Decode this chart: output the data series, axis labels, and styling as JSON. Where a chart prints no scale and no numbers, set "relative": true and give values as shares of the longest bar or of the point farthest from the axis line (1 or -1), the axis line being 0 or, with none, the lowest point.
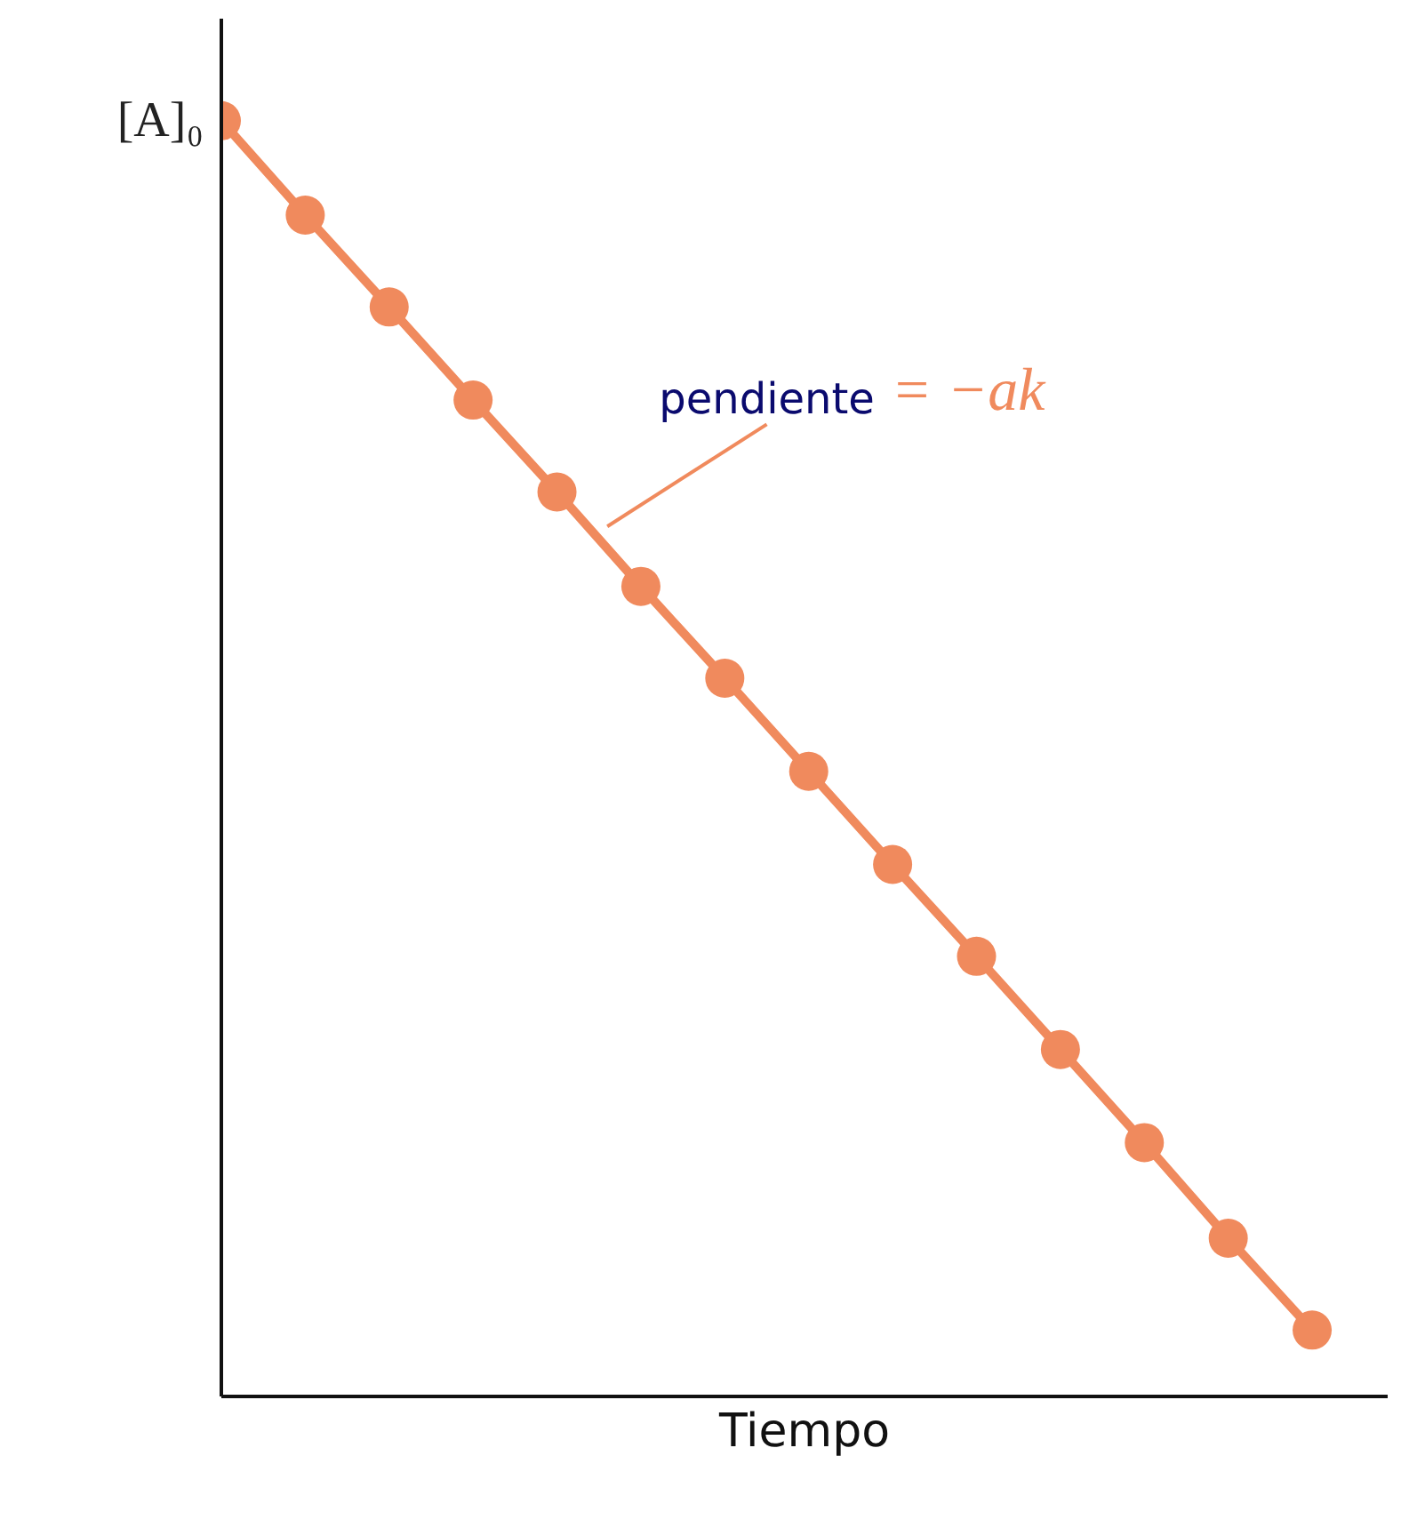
{
  "chart_data": {
    "type": "line",
    "relative": true,
    "xlabel": "Tiempo",
    "categories": [
      null,
      null,
      null,
      null,
      null,
      null,
      null,
      null,
      null,
      null,
      null,
      null,
      null,
      null
    ],
    "series": [
      {
        "color": "#f08a5d",
        "values": [
          1,
          0.926,
          0.854,
          0.781,
          0.709,
          0.635,
          0.563,
          0.49,
          0.417,
          0.345,
          0.272,
          0.199,
          0.124,
          0.052
        ]
      }
    ],
    "marker": "circle",
    "line_style": "solid",
    "annotations": [
      "[A]₀",
      "pendiente = −ak"
    ]
  }
}
